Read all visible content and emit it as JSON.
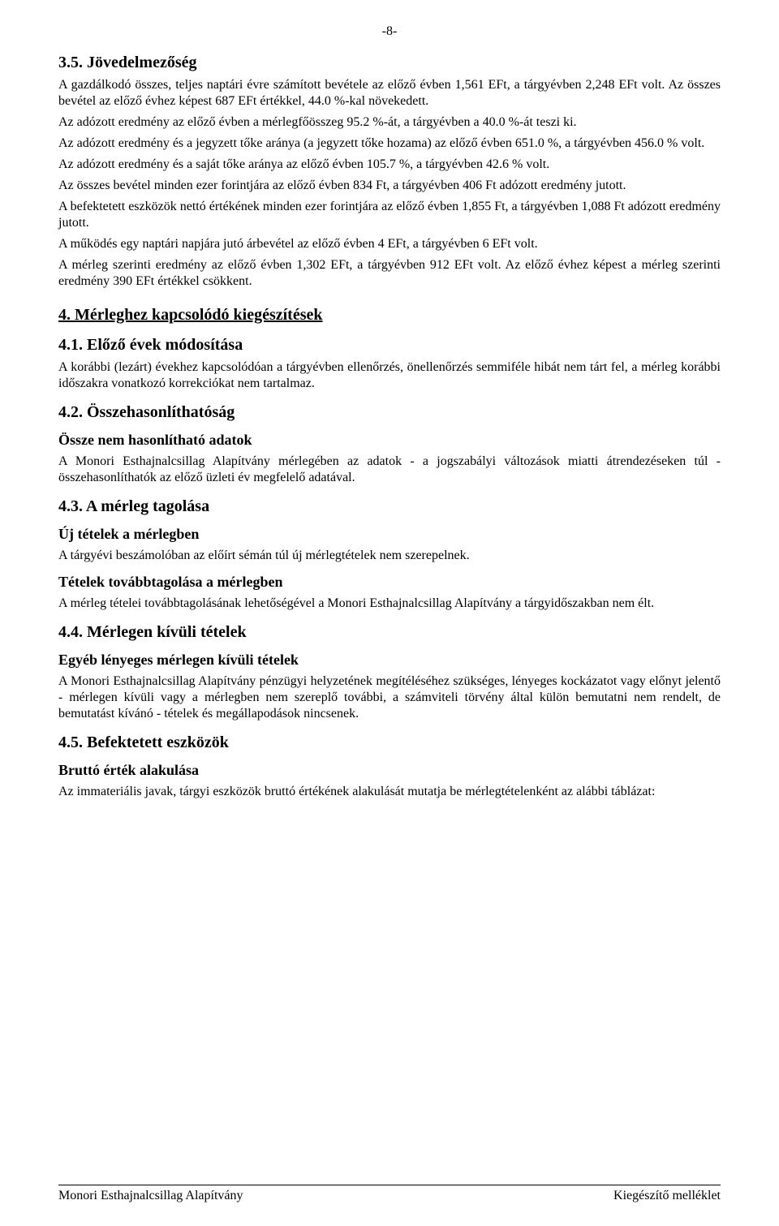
{
  "page_number": "-8-",
  "sections": {
    "s35": {
      "heading": "3.5. Jövedelmezőség",
      "p1": "A gazdálkodó összes, teljes naptári évre számított bevétele az előző évben 1,561 EFt, a tárgyévben 2,248 EFt volt. Az összes bevétel az előző évhez képest 687 EFt értékkel, 44.0 %-kal növekedett.",
      "p2": "Az adózott eredmény az előző évben a mérlegfőösszeg 95.2 %-át, a tárgyévben a 40.0 %-át teszi ki.",
      "p3": "Az adózott eredmény és a jegyzett tőke aránya (a jegyzett tőke hozama) az előző évben 651.0 %, a tárgyévben 456.0 % volt.",
      "p4": "Az adózott eredmény és a saját tőke aránya az előző évben 105.7 %, a tárgyévben 42.6 % volt.",
      "p5": "Az összes bevétel minden ezer forintjára az előző évben 834 Ft, a tárgyévben 406 Ft adózott eredmény jutott.",
      "p6": "A befektetett eszközök nettó értékének minden ezer forintjára az előző évben 1,855 Ft, a tárgyévben 1,088 Ft adózott eredmény jutott.",
      "p7": "A működés egy naptári napjára jutó árbevétel az előző évben 4 EFt, a tárgyévben 6 EFt volt.",
      "p8": "A mérleg szerinti eredmény az előző évben 1,302 EFt, a tárgyévben 912 EFt volt. Az előző évhez képest a mérleg szerinti eredmény 390 EFt értékkel csökkent."
    },
    "s4": {
      "heading": "4. Mérleghez kapcsolódó kiegészítések"
    },
    "s41": {
      "heading": "4.1. Előző évek módosítása",
      "p1": "A korábbi (lezárt) évekhez kapcsolódóan a tárgyévben ellenőrzés, önellenőrzés semmiféle hibát nem tárt fel, a mérleg korábbi időszakra vonatkozó korrekciókat nem tartalmaz."
    },
    "s42": {
      "heading": "4.2. Összehasonlíthatóság",
      "sub1": "Össze nem hasonlítható adatok",
      "p1": "A Monori Esthajnalcsillag Alapítvány mérlegében az adatok - a jogszabályi változások miatti átrendezéseken túl - összehasonlíthatók az előző üzleti év megfelelő adatával."
    },
    "s43": {
      "heading": "4.3. A mérleg tagolása",
      "sub1": "Új tételek a mérlegben",
      "p1": "A tárgyévi beszámolóban az előírt sémán túl új mérlegtételek nem szerepelnek.",
      "sub2": "Tételek továbbtagolása a mérlegben",
      "p2": "A mérleg tételei továbbtagolásának lehetőségével a Monori Esthajnalcsillag Alapítvány a tárgyidőszakban nem élt."
    },
    "s44": {
      "heading": "4.4. Mérlegen kívüli tételek",
      "sub1": "Egyéb lényeges mérlegen kívüli tételek",
      "p1": "A Monori Esthajnalcsillag Alapítvány pénzügyi helyzetének megítéléséhez szükséges, lényeges kockázatot vagy előnyt jelentő - mérlegen kívüli vagy a mérlegben nem szereplő további, a számviteli törvény által külön bemutatni nem rendelt, de bemutatást kívánó - tételek és megállapodások nincsenek."
    },
    "s45": {
      "heading": "4.5. Befektetett eszközök",
      "sub1": "Bruttó érték alakulása",
      "p1": "Az immateriális javak, tárgyi eszközök bruttó értékének alakulását mutatja be mérlegtételenként az alábbi táblázat:"
    }
  },
  "footer": {
    "left": "Monori Esthajnalcsillag Alapítvány",
    "right": "Kiegészítő melléklet"
  }
}
